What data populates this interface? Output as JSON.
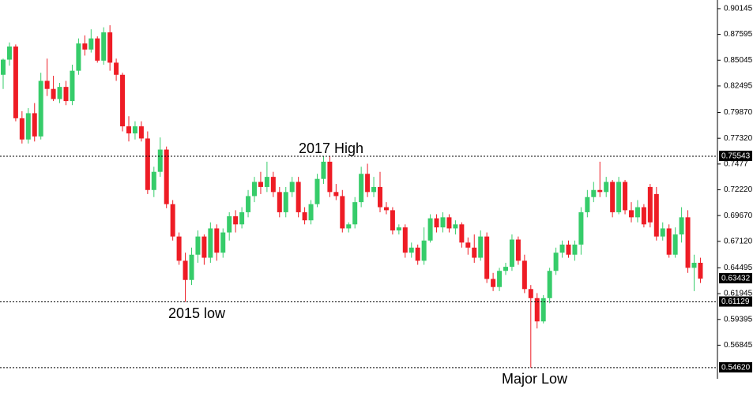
{
  "chart_data": {
    "type": "candlestick",
    "open": [
      0.836,
      0.851,
      0.864,
      0.793,
      0.772,
      0.798,
      0.775,
      0.83,
      0.822,
      0.812,
      0.824,
      0.81,
      0.84,
      0.867,
      0.861,
      0.872,
      0.85,
      0.878,
      0.848,
      0.836,
      0.785,
      0.778,
      0.785,
      0.773,
      0.722,
      0.74,
      0.762,
      0.708,
      0.676,
      0.652,
      0.633,
      0.658,
      0.676,
      0.655,
      0.684,
      0.66,
      0.68,
      0.696,
      0.688,
      0.7,
      0.716,
      0.73,
      0.725,
      0.735,
      0.72,
      0.7,
      0.72,
      0.73,
      0.7,
      0.692,
      0.708,
      0.733,
      0.75,
      0.72,
      0.716,
      0.684,
      0.688,
      0.71,
      0.738,
      0.72,
      0.725,
      0.705,
      0.702,
      0.682,
      0.685,
      0.66,
      0.665,
      0.652,
      0.672,
      0.694,
      0.685,
      0.695,
      0.684,
      0.688,
      0.67,
      0.665,
      0.655,
      0.676,
      0.634,
      0.626,
      0.642,
      0.646,
      0.673,
      0.652,
      0.624,
      0.615,
      0.592,
      0.615,
      0.642,
      0.66,
      0.668,
      0.658,
      0.668,
      0.7,
      0.715,
      0.722,
      0.72,
      0.73,
      0.7,
      0.73,
      0.702,
      0.695,
      0.705,
      0.725,
      0.718,
      0.676,
      0.684,
      0.658,
      0.678,
      0.695,
      0.645,
      0.65
    ],
    "high": [
      0.852,
      0.868,
      0.866,
      0.8,
      0.803,
      0.808,
      0.838,
      0.852,
      0.835,
      0.828,
      0.83,
      0.846,
      0.872,
      0.875,
      0.881,
      0.874,
      0.883,
      0.885,
      0.852,
      0.838,
      0.795,
      0.79,
      0.79,
      0.78,
      0.745,
      0.774,
      0.765,
      0.712,
      0.68,
      0.66,
      0.665,
      0.682,
      0.678,
      0.69,
      0.688,
      0.684,
      0.7,
      0.702,
      0.705,
      0.722,
      0.735,
      0.74,
      0.75,
      0.74,
      0.725,
      0.725,
      0.735,
      0.735,
      0.705,
      0.712,
      0.738,
      0.7554,
      0.755,
      0.728,
      0.722,
      0.69,
      0.715,
      0.745,
      0.748,
      0.735,
      0.74,
      0.71,
      0.705,
      0.688,
      0.688,
      0.67,
      0.668,
      0.685,
      0.698,
      0.698,
      0.7,
      0.698,
      0.692,
      0.69,
      0.675,
      0.678,
      0.682,
      0.68,
      0.64,
      0.645,
      0.65,
      0.678,
      0.676,
      0.658,
      0.628,
      0.62,
      0.618,
      0.645,
      0.665,
      0.672,
      0.672,
      0.672,
      0.705,
      0.722,
      0.73,
      0.75,
      0.735,
      0.732,
      0.735,
      0.732,
      0.71,
      0.712,
      0.708,
      0.728,
      0.725,
      0.69,
      0.688,
      0.685,
      0.705,
      0.702,
      0.658,
      0.655
    ],
    "low": [
      0.822,
      0.845,
      0.79,
      0.768,
      0.768,
      0.77,
      0.772,
      0.815,
      0.81,
      0.808,
      0.806,
      0.806,
      0.836,
      0.855,
      0.858,
      0.848,
      0.846,
      0.84,
      0.83,
      0.78,
      0.77,
      0.772,
      0.77,
      0.718,
      0.715,
      0.735,
      0.704,
      0.672,
      0.648,
      0.6113,
      0.628,
      0.65,
      0.648,
      0.65,
      0.652,
      0.655,
      0.672,
      0.68,
      0.684,
      0.695,
      0.71,
      0.718,
      0.72,
      0.715,
      0.695,
      0.695,
      0.715,
      0.695,
      0.688,
      0.688,
      0.705,
      0.728,
      0.715,
      0.712,
      0.68,
      0.68,
      0.684,
      0.705,
      0.715,
      0.715,
      0.7,
      0.698,
      0.678,
      0.678,
      0.655,
      0.655,
      0.648,
      0.648,
      0.67,
      0.68,
      0.68,
      0.68,
      0.678,
      0.665,
      0.658,
      0.65,
      0.652,
      0.63,
      0.622,
      0.622,
      0.638,
      0.642,
      0.648,
      0.62,
      0.5462,
      0.585,
      0.59,
      0.61,
      0.638,
      0.655,
      0.655,
      0.652,
      0.658,
      0.695,
      0.71,
      0.715,
      0.715,
      0.695,
      0.698,
      0.698,
      0.69,
      0.69,
      0.685,
      0.685,
      0.672,
      0.672,
      0.655,
      0.655,
      0.67,
      0.64,
      0.622,
      0.63
    ],
    "close": [
      0.851,
      0.864,
      0.793,
      0.772,
      0.798,
      0.775,
      0.83,
      0.822,
      0.812,
      0.824,
      0.81,
      0.84,
      0.867,
      0.861,
      0.872,
      0.85,
      0.878,
      0.848,
      0.836,
      0.785,
      0.778,
      0.785,
      0.773,
      0.722,
      0.74,
      0.762,
      0.708,
      0.676,
      0.652,
      0.633,
      0.658,
      0.676,
      0.655,
      0.684,
      0.66,
      0.68,
      0.696,
      0.688,
      0.7,
      0.716,
      0.73,
      0.725,
      0.735,
      0.72,
      0.7,
      0.72,
      0.73,
      0.7,
      0.692,
      0.708,
      0.733,
      0.75,
      0.72,
      0.716,
      0.684,
      0.688,
      0.71,
      0.738,
      0.72,
      0.725,
      0.705,
      0.702,
      0.682,
      0.685,
      0.66,
      0.665,
      0.652,
      0.672,
      0.694,
      0.685,
      0.695,
      0.684,
      0.688,
      0.67,
      0.665,
      0.655,
      0.676,
      0.634,
      0.626,
      0.642,
      0.646,
      0.673,
      0.652,
      0.624,
      0.615,
      0.592,
      0.615,
      0.642,
      0.66,
      0.668,
      0.658,
      0.668,
      0.7,
      0.715,
      0.722,
      0.72,
      0.73,
      0.7,
      0.73,
      0.702,
      0.695,
      0.705,
      0.688,
      0.69,
      0.676,
      0.684,
      0.658,
      0.678,
      0.695,
      0.645,
      0.65,
      0.63432
    ],
    "up_color": "#36cc6a",
    "down_color": "#ee1c25",
    "ylim": [
      0.5352,
      0.91
    ],
    "yticks": [
      0.90145,
      0.87595,
      0.85045,
      0.82495,
      {
        "value": 0.7987,
        "label": "0.79870"
      },
      {
        "value": 0.7732,
        "label": "0.77320"
      },
      0.7477,
      {
        "value": 0.7222,
        "label": "0.72220"
      },
      {
        "value": 0.6967,
        "label": "0.69670"
      },
      {
        "value": 0.6712,
        "label": "0.67120"
      },
      0.64495,
      0.61945,
      0.59395,
      0.56845
    ],
    "levels": [
      0.75543,
      0.61129,
      {
        "value": 0.5462,
        "label": "0.54620"
      }
    ],
    "annotations": [
      "2017 High",
      "2015 low",
      "Major Low"
    ]
  }
}
